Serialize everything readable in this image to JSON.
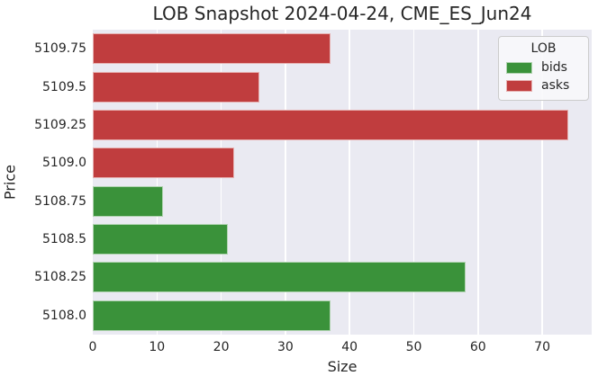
{
  "chart_data": {
    "type": "bar",
    "orientation": "horizontal",
    "title": "LOB Snapshot 2024-04-24, CME_ES_Jun24",
    "xlabel": "Size",
    "ylabel": "Price",
    "categories": [
      "5109.75",
      "5109.5",
      "5109.25",
      "5109.0",
      "5108.75",
      "5108.5",
      "5108.25",
      "5108.0"
    ],
    "bars": [
      {
        "price": "5109.75",
        "side": "asks",
        "size": 37
      },
      {
        "price": "5109.5",
        "side": "asks",
        "size": 26
      },
      {
        "price": "5109.25",
        "side": "asks",
        "size": 74
      },
      {
        "price": "5109.0",
        "side": "asks",
        "size": 22
      },
      {
        "price": "5108.75",
        "side": "bids",
        "size": 11
      },
      {
        "price": "5108.5",
        "side": "bids",
        "size": 21
      },
      {
        "price": "5108.25",
        "side": "bids",
        "size": 58
      },
      {
        "price": "5108.0",
        "side": "bids",
        "size": 37
      }
    ],
    "series": [
      {
        "name": "bids",
        "values": [
          null,
          null,
          null,
          null,
          11,
          21,
          58,
          37
        ]
      },
      {
        "name": "asks",
        "values": [
          37,
          26,
          74,
          22,
          null,
          null,
          null,
          null
        ]
      }
    ],
    "xticks": [
      0,
      10,
      20,
      30,
      40,
      50,
      60,
      70
    ],
    "xlim": [
      0,
      77.7
    ],
    "grid": true,
    "legend": {
      "title": "LOB",
      "position": "upper right",
      "entries": [
        {
          "label": "bids",
          "color": "#3a923a"
        },
        {
          "label": "asks",
          "color": "#c03d3e"
        }
      ]
    },
    "colors": {
      "bids": "#3a923a",
      "asks": "#c03d3e",
      "plot_bg": "#eaeaf2",
      "grid": "#ffffff",
      "text": "#262626",
      "figure_bg": "#ffffff"
    }
  }
}
